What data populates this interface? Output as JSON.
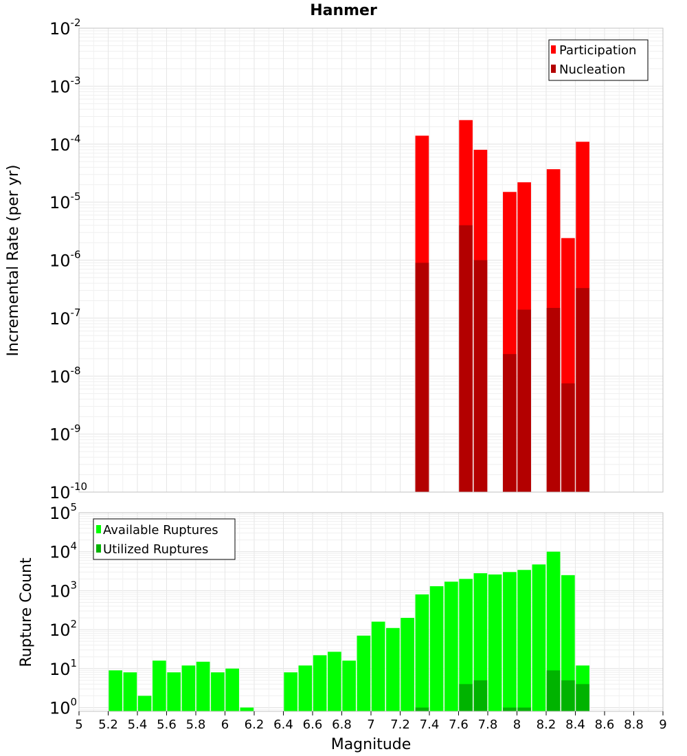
{
  "title": "Hanmer",
  "xlabel": "Magnitude",
  "colors": {
    "participation": "#ff0000",
    "nucleation": "#b30000",
    "available": "#00ff00",
    "utilized": "#00b300"
  },
  "chart_data": [
    {
      "type": "bar",
      "title": "Hanmer",
      "ylabel": "Incremental Rate (per yr)",
      "yscale": "log",
      "ylim": [
        1e-10,
        0.01
      ],
      "xlim": [
        5,
        9
      ],
      "bar_width": 0.1,
      "grid": true,
      "legend_position": "top-right",
      "legend": [
        "Participation",
        "Nucleation"
      ],
      "series": [
        {
          "name": "Participation",
          "x": [
            7.35,
            7.65,
            7.75,
            7.95,
            8.05,
            8.25,
            8.35,
            8.45
          ],
          "values": [
            0.00014,
            0.00026,
            8e-05,
            1.5e-05,
            2.2e-05,
            3.7e-05,
            2.4e-06,
            0.00011
          ]
        },
        {
          "name": "Nucleation",
          "x": [
            7.35,
            7.65,
            7.75,
            7.95,
            8.05,
            8.25,
            8.35,
            8.45
          ],
          "values": [
            9e-07,
            4e-06,
            1e-06,
            2.4e-08,
            1.4e-07,
            1.5e-07,
            7.5e-09,
            3.3e-07
          ]
        }
      ]
    },
    {
      "type": "bar",
      "xlabel": "Magnitude",
      "ylabel": "Rupture Count",
      "yscale": "log",
      "ylim": [
        0.8,
        100000
      ],
      "xlim": [
        5,
        9
      ],
      "bar_width": 0.1,
      "grid": true,
      "legend_position": "top-left",
      "legend": [
        "Available Ruptures",
        "Utilized Ruptures"
      ],
      "xticks": [
        "5",
        "5.2",
        "5.4",
        "5.6",
        "5.8",
        "6",
        "6.2",
        "6.4",
        "6.6",
        "6.8",
        "7",
        "7.2",
        "7.4",
        "7.6",
        "7.8",
        "8",
        "8.2",
        "8.4",
        "8.6",
        "8.8",
        "9"
      ],
      "series": [
        {
          "name": "Available Ruptures",
          "x": [
            5.25,
            5.35,
            5.45,
            5.55,
            5.65,
            5.75,
            5.85,
            5.95,
            6.05,
            6.15,
            6.45,
            6.55,
            6.65,
            6.75,
            6.85,
            6.95,
            7.05,
            7.15,
            7.25,
            7.35,
            7.45,
            7.55,
            7.65,
            7.75,
            7.85,
            7.95,
            8.05,
            8.15,
            8.25,
            8.35,
            8.45
          ],
          "values": [
            9,
            8,
            2,
            16,
            8,
            12,
            15,
            8,
            10,
            1,
            8,
            12,
            22,
            27,
            16,
            70,
            160,
            110,
            200,
            800,
            1300,
            1700,
            2000,
            2800,
            2600,
            3000,
            3400,
            4700,
            10000,
            2500,
            12
          ]
        },
        {
          "name": "Utilized Ruptures",
          "x": [
            7.35,
            7.65,
            7.75,
            7.95,
            8.05,
            8.25,
            8.35,
            8.45
          ],
          "values": [
            1,
            4,
            5,
            1,
            1,
            9,
            5,
            4
          ]
        }
      ]
    }
  ]
}
